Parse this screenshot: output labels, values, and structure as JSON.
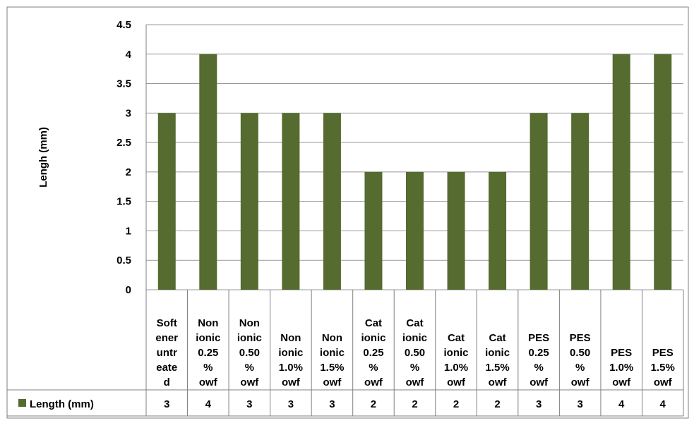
{
  "chart_data": {
    "type": "bar",
    "ylabel": "Lengh (mm)",
    "ylim": [
      0,
      4.5
    ],
    "yticks": [
      "0",
      "0.5",
      "1",
      "1.5",
      "2",
      "2.5",
      "3",
      "3.5",
      "4",
      "4.5"
    ],
    "grid": true,
    "legend_position": "bottom-left (data table)",
    "colors": {
      "bar": "#556b2f",
      "grid": "#9a9a9a",
      "border": "#7f7f7f",
      "text": "#000000"
    },
    "categories": [
      [
        "Soft",
        "ener",
        "untr",
        "eate",
        "d"
      ],
      [
        "Non",
        "ionic",
        "0.25",
        "%",
        "owf"
      ],
      [
        "Non",
        "ionic",
        "0.50",
        "%",
        "owf"
      ],
      [
        "Non",
        "ionic",
        "1.0%",
        "owf"
      ],
      [
        "Non",
        "ionic",
        "1.5%",
        "owf"
      ],
      [
        "Cat",
        "ionic",
        "0.25",
        "%",
        "owf"
      ],
      [
        "Cat",
        "ionic",
        "0.50",
        "%",
        "owf"
      ],
      [
        "Cat",
        "ionic",
        "1.0%",
        "owf"
      ],
      [
        "Cat",
        "ionic",
        "1.5%",
        "owf"
      ],
      [
        "PES",
        "0.25",
        "%",
        "owf"
      ],
      [
        "PES",
        "0.50",
        "%",
        "owf"
      ],
      [
        "PES",
        "1.0%",
        "owf"
      ],
      [
        "PES",
        "1.5%",
        "owf"
      ]
    ],
    "series": [
      {
        "name": "Length  (mm)",
        "values": [
          3,
          4,
          3,
          3,
          3,
          2,
          2,
          2,
          2,
          3,
          3,
          4,
          4
        ],
        "value_labels": [
          "3",
          "4",
          "3",
          "3",
          "3",
          "2",
          "2",
          "2",
          "2",
          "3",
          "3",
          "4",
          "4"
        ]
      }
    ]
  }
}
